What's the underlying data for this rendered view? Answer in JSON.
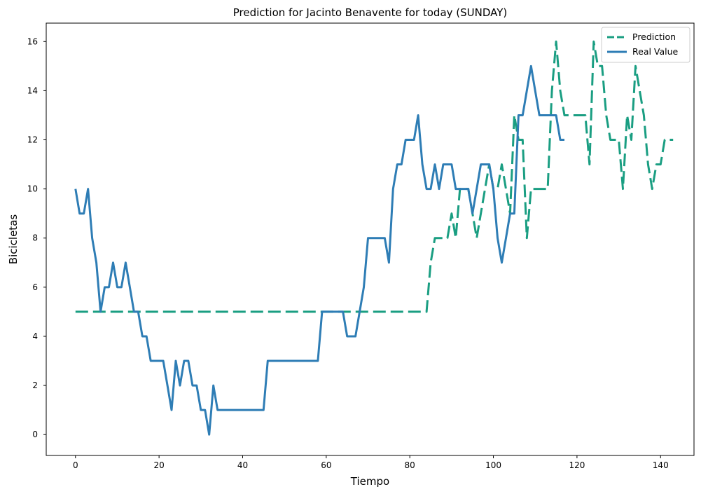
{
  "chart_data": {
    "type": "line",
    "title": "Prediction for Jacinto Benavente for today (SUNDAY)",
    "xlabel": "Tiempo",
    "ylabel": "Bicicletas",
    "xlim": [
      -7,
      148
    ],
    "ylim": [
      -0.85,
      16.75
    ],
    "xticks": [
      0,
      20,
      40,
      60,
      80,
      100,
      120,
      140
    ],
    "yticks": [
      0,
      2,
      4,
      6,
      8,
      10,
      12,
      14,
      16
    ],
    "grid": false,
    "legend": "top-right",
    "series": [
      {
        "name": "Prediction",
        "color": "#1a9e82",
        "style": "dashed",
        "points": [
          [
            0,
            5
          ],
          [
            84,
            5
          ],
          [
            85,
            7
          ],
          [
            86,
            8
          ],
          [
            88,
            8
          ],
          [
            89,
            8
          ],
          [
            90,
            9
          ],
          [
            91,
            8
          ],
          [
            92,
            10
          ],
          [
            94,
            10
          ],
          [
            95,
            9
          ],
          [
            96,
            8
          ],
          [
            97,
            9
          ],
          [
            98,
            10
          ],
          [
            99,
            11
          ],
          [
            100,
            10
          ],
          [
            101,
            10
          ],
          [
            102,
            11
          ],
          [
            103,
            10
          ],
          [
            104,
            9
          ],
          [
            105,
            13
          ],
          [
            106,
            12
          ],
          [
            107,
            12
          ],
          [
            108,
            8
          ],
          [
            109,
            10
          ],
          [
            110,
            10
          ],
          [
            113,
            10
          ],
          [
            114,
            14
          ],
          [
            115,
            16
          ],
          [
            116,
            14
          ],
          [
            117,
            13
          ],
          [
            118,
            13
          ],
          [
            122,
            13
          ],
          [
            123,
            11
          ],
          [
            124,
            16
          ],
          [
            125,
            15
          ],
          [
            126,
            15
          ],
          [
            127,
            13
          ],
          [
            128,
            12
          ],
          [
            130,
            12
          ],
          [
            131,
            10
          ],
          [
            132,
            13
          ],
          [
            133,
            12
          ],
          [
            134,
            15
          ],
          [
            135,
            14
          ],
          [
            136,
            13
          ],
          [
            137,
            11
          ],
          [
            138,
            10
          ],
          [
            139,
            11
          ],
          [
            140,
            11
          ],
          [
            141,
            12
          ],
          [
            143,
            12
          ]
        ]
      },
      {
        "name": "Real Value",
        "color": "#2e7db5",
        "style": "solid",
        "points": [
          [
            0,
            10
          ],
          [
            1,
            9
          ],
          [
            2,
            9
          ],
          [
            3,
            10
          ],
          [
            4,
            8
          ],
          [
            5,
            7
          ],
          [
            6,
            5
          ],
          [
            7,
            6
          ],
          [
            8,
            6
          ],
          [
            9,
            7
          ],
          [
            10,
            6
          ],
          [
            11,
            6
          ],
          [
            12,
            7
          ],
          [
            13,
            6
          ],
          [
            14,
            5
          ],
          [
            15,
            5
          ],
          [
            16,
            4
          ],
          [
            17,
            4
          ],
          [
            18,
            3
          ],
          [
            19,
            3
          ],
          [
            20,
            3
          ],
          [
            21,
            3
          ],
          [
            22,
            2
          ],
          [
            23,
            1
          ],
          [
            24,
            3
          ],
          [
            25,
            2
          ],
          [
            26,
            3
          ],
          [
            27,
            3
          ],
          [
            28,
            2
          ],
          [
            29,
            2
          ],
          [
            30,
            1
          ],
          [
            31,
            1
          ],
          [
            32,
            0
          ],
          [
            33,
            2
          ],
          [
            34,
            1
          ],
          [
            44,
            1
          ],
          [
            45,
            1
          ],
          [
            46,
            3
          ],
          [
            58,
            3
          ],
          [
            59,
            5
          ],
          [
            64,
            5
          ],
          [
            65,
            4
          ],
          [
            67,
            4
          ],
          [
            69,
            6
          ],
          [
            70,
            8
          ],
          [
            74,
            8
          ],
          [
            75,
            7
          ],
          [
            76,
            10
          ],
          [
            77,
            11
          ],
          [
            78,
            11
          ],
          [
            79,
            12
          ],
          [
            81,
            12
          ],
          [
            82,
            13
          ],
          [
            83,
            11
          ],
          [
            84,
            10
          ],
          [
            85,
            10
          ],
          [
            86,
            11
          ],
          [
            87,
            10
          ],
          [
            88,
            11
          ],
          [
            90,
            11
          ],
          [
            91,
            10
          ],
          [
            94,
            10
          ],
          [
            95,
            9
          ],
          [
            96,
            10
          ],
          [
            97,
            11
          ],
          [
            99,
            11
          ],
          [
            100,
            10
          ],
          [
            101,
            8
          ],
          [
            102,
            7
          ],
          [
            103,
            8
          ],
          [
            104,
            9
          ],
          [
            105,
            9
          ],
          [
            106,
            13
          ],
          [
            107,
            13
          ],
          [
            108,
            14
          ],
          [
            109,
            15
          ],
          [
            110,
            14
          ],
          [
            111,
            13
          ],
          [
            115,
            13
          ],
          [
            116,
            12
          ],
          [
            117,
            12
          ]
        ]
      }
    ]
  }
}
